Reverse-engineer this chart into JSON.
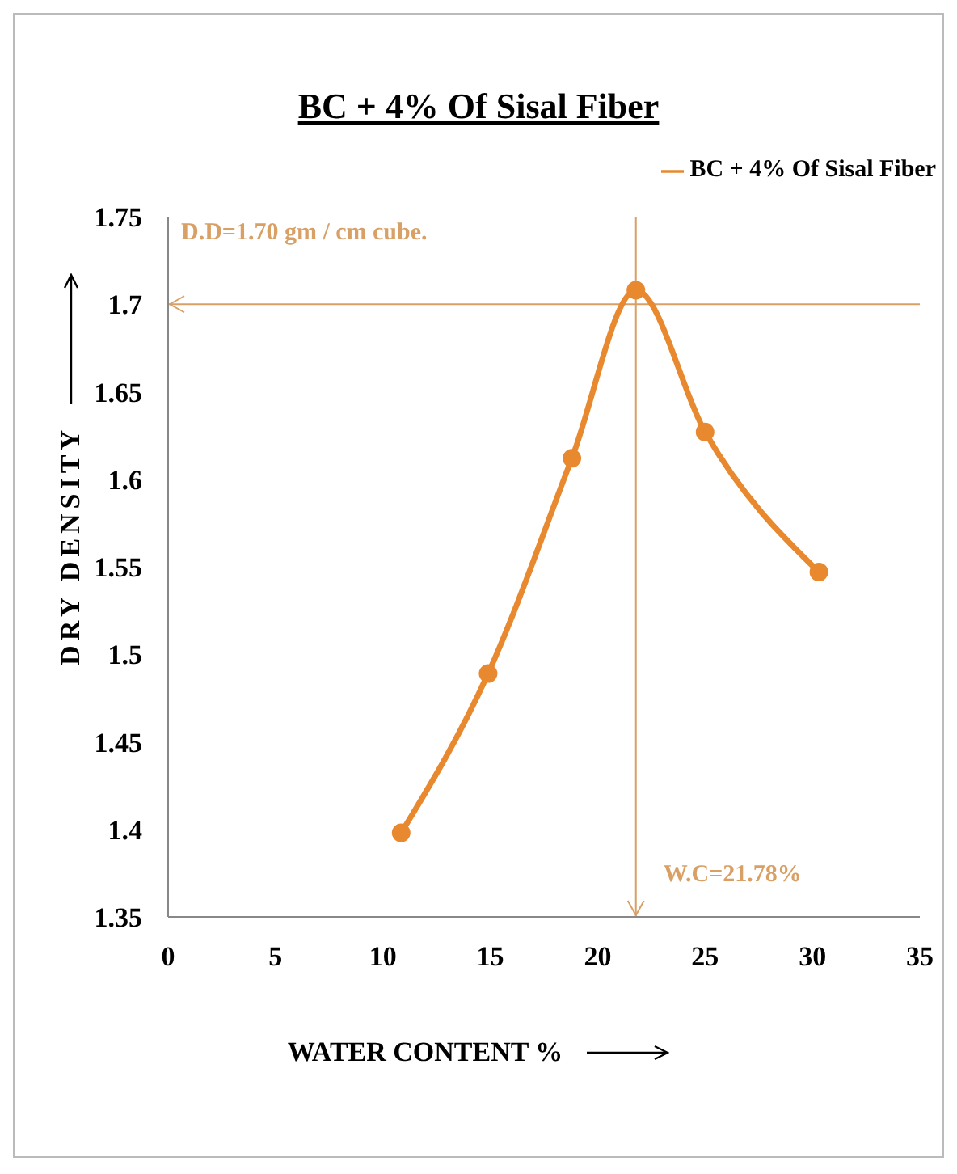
{
  "chart_data": {
    "type": "line",
    "title": "BC + 4% Of Sisal Fiber",
    "xlabel": "WATER CONTENT %",
    "ylabel": "DRY DENSITY",
    "x": [
      10.85,
      14.9,
      18.8,
      21.78,
      25.0,
      30.3
    ],
    "series": [
      {
        "name": "BC + 4% Of Sisal Fiber",
        "color": "#e8892f",
        "values": [
          1.398,
          1.489,
          1.612,
          1.708,
          1.627,
          1.547
        ]
      }
    ],
    "xlim": [
      0,
      35
    ],
    "xticks": [
      0,
      5,
      10,
      15,
      20,
      25,
      30,
      35
    ],
    "ylim": [
      1.35,
      1.75
    ],
    "yticks": [
      1.35,
      1.4,
      1.45,
      1.5,
      1.55,
      1.6,
      1.65,
      1.7,
      1.75
    ],
    "ref_lines": [
      {
        "axis": "y",
        "value": 1.7,
        "label": "D.D=1.70 gm / cm cube.",
        "color": "#d9a066"
      },
      {
        "axis": "x",
        "value": 21.78,
        "label": "W.C=21.78%",
        "color": "#d9a066"
      }
    ],
    "grid": false,
    "legend": "top right",
    "marker": "circle",
    "line_style": "solid"
  }
}
